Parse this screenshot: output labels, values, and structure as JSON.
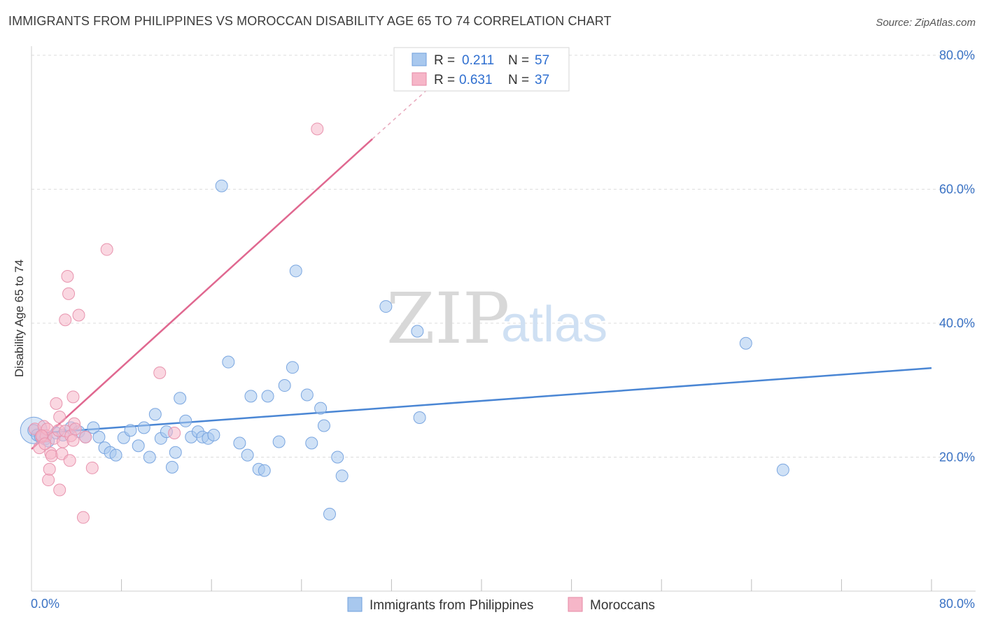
{
  "header": {
    "title": "IMMIGRANTS FROM PHILIPPINES VS MOROCCAN DISABILITY AGE 65 TO 74 CORRELATION CHART",
    "source": "Source: ZipAtlas.com"
  },
  "watermark": {
    "zip": "ZIP",
    "atlas": "atlas"
  },
  "legend": {
    "rows": [
      {
        "r_label": "R =",
        "r_value": "0.211",
        "n_label": "N =",
        "n_value": "57",
        "color": "#a8c8ee"
      },
      {
        "r_label": "R =",
        "r_value": "0.631",
        "n_label": "N =",
        "n_value": "37",
        "color": "#f6b6c8"
      }
    ]
  },
  "bottom_legend": {
    "items": [
      {
        "label": "Immigrants from Philippines",
        "color": "#a8c8ee"
      },
      {
        "label": "Moroccans",
        "color": "#f6b6c8"
      }
    ]
  },
  "chart_data": {
    "type": "scatter",
    "title": "IMMIGRANTS FROM PHILIPPINES VS MOROCCAN DISABILITY AGE 65 TO 74 CORRELATION CHART",
    "xlabel": "",
    "ylabel": "Disability Age 65 to 74",
    "xlim": [
      0,
      80
    ],
    "ylim": [
      0,
      80
    ],
    "x_tick_labels": [
      "0.0%",
      "80.0%"
    ],
    "y_tick_labels": [
      "20.0%",
      "40.0%",
      "60.0%",
      "80.0%"
    ],
    "y_ticks": [
      20,
      40,
      60,
      80
    ],
    "grid": true,
    "series": [
      {
        "name": "Immigrants from Philippines",
        "color": "#4a86d4",
        "fill": "#a8c8ee",
        "trend": {
          "x": [
            0,
            80
          ],
          "y": [
            23.5,
            33.3
          ],
          "style": "solid"
        },
        "points": [
          [
            0.2,
            24.0
          ],
          [
            0.5,
            23.3
          ],
          [
            0.8,
            23.0
          ],
          [
            1.0,
            23.1
          ],
          [
            1.2,
            22.7
          ],
          [
            1.5,
            22.4
          ],
          [
            2.2,
            23.6
          ],
          [
            2.8,
            23.3
          ],
          [
            3.5,
            24.4
          ],
          [
            4.2,
            23.8
          ],
          [
            4.8,
            23.0
          ],
          [
            5.5,
            24.4
          ],
          [
            6.0,
            23.0
          ],
          [
            6.5,
            21.4
          ],
          [
            7.0,
            20.7
          ],
          [
            7.5,
            20.3
          ],
          [
            8.2,
            22.9
          ],
          [
            8.8,
            24.0
          ],
          [
            9.5,
            21.7
          ],
          [
            10.0,
            24.4
          ],
          [
            10.5,
            20.0
          ],
          [
            11.0,
            26.4
          ],
          [
            11.5,
            22.8
          ],
          [
            12.0,
            23.8
          ],
          [
            12.5,
            18.5
          ],
          [
            12.8,
            20.7
          ],
          [
            13.2,
            28.8
          ],
          [
            13.7,
            25.4
          ],
          [
            14.2,
            23.0
          ],
          [
            14.8,
            23.8
          ],
          [
            15.2,
            23.0
          ],
          [
            15.7,
            22.8
          ],
          [
            16.2,
            23.3
          ],
          [
            16.9,
            60.5
          ],
          [
            17.5,
            34.2
          ],
          [
            18.5,
            22.1
          ],
          [
            19.2,
            20.3
          ],
          [
            19.5,
            29.1
          ],
          [
            20.2,
            18.2
          ],
          [
            20.7,
            18.0
          ],
          [
            21.0,
            29.1
          ],
          [
            22.0,
            22.3
          ],
          [
            22.5,
            30.7
          ],
          [
            23.2,
            33.4
          ],
          [
            23.5,
            47.8
          ],
          [
            24.5,
            29.3
          ],
          [
            24.9,
            22.1
          ],
          [
            25.7,
            27.3
          ],
          [
            26.0,
            24.7
          ],
          [
            26.5,
            11.5
          ],
          [
            27.2,
            20.0
          ],
          [
            27.6,
            17.2
          ],
          [
            31.5,
            42.5
          ],
          [
            34.3,
            38.8
          ],
          [
            34.5,
            25.9
          ],
          [
            63.5,
            37.0
          ],
          [
            66.8,
            18.1
          ]
        ]
      },
      {
        "name": "Moroccans",
        "color": "#e06890",
        "fill": "#f6b6c8",
        "trend": {
          "x": [
            0,
            30.3
          ],
          "y": [
            21.2,
            67.5
          ],
          "style": "solid",
          "dashed_extension_to": [
            35.6,
            75.5
          ]
        },
        "points": [
          [
            0.3,
            24.2
          ],
          [
            0.7,
            21.4
          ],
          [
            0.9,
            23.0
          ],
          [
            1.1,
            24.6
          ],
          [
            1.3,
            23.2
          ],
          [
            1.4,
            24.2
          ],
          [
            1.5,
            16.6
          ],
          [
            1.6,
            18.2
          ],
          [
            1.7,
            20.6
          ],
          [
            1.8,
            20.2
          ],
          [
            2.0,
            22.8
          ],
          [
            2.2,
            28.0
          ],
          [
            2.4,
            24.0
          ],
          [
            2.5,
            26.0
          ],
          [
            2.5,
            15.1
          ],
          [
            2.7,
            20.5
          ],
          [
            2.8,
            22.3
          ],
          [
            3.0,
            23.9
          ],
          [
            3.0,
            40.5
          ],
          [
            3.2,
            47.0
          ],
          [
            3.3,
            44.4
          ],
          [
            3.4,
            19.5
          ],
          [
            3.5,
            23.2
          ],
          [
            3.7,
            22.5
          ],
          [
            3.7,
            29.0
          ],
          [
            3.8,
            25.0
          ],
          [
            3.9,
            24.2
          ],
          [
            4.2,
            41.2
          ],
          [
            4.6,
            11.0
          ],
          [
            4.8,
            23.0
          ],
          [
            5.4,
            18.4
          ],
          [
            6.7,
            51.0
          ],
          [
            11.4,
            32.6
          ],
          [
            12.7,
            23.6
          ],
          [
            25.4,
            69.0
          ],
          [
            0.9,
            23.2
          ],
          [
            1.2,
            22.0
          ]
        ]
      }
    ]
  }
}
